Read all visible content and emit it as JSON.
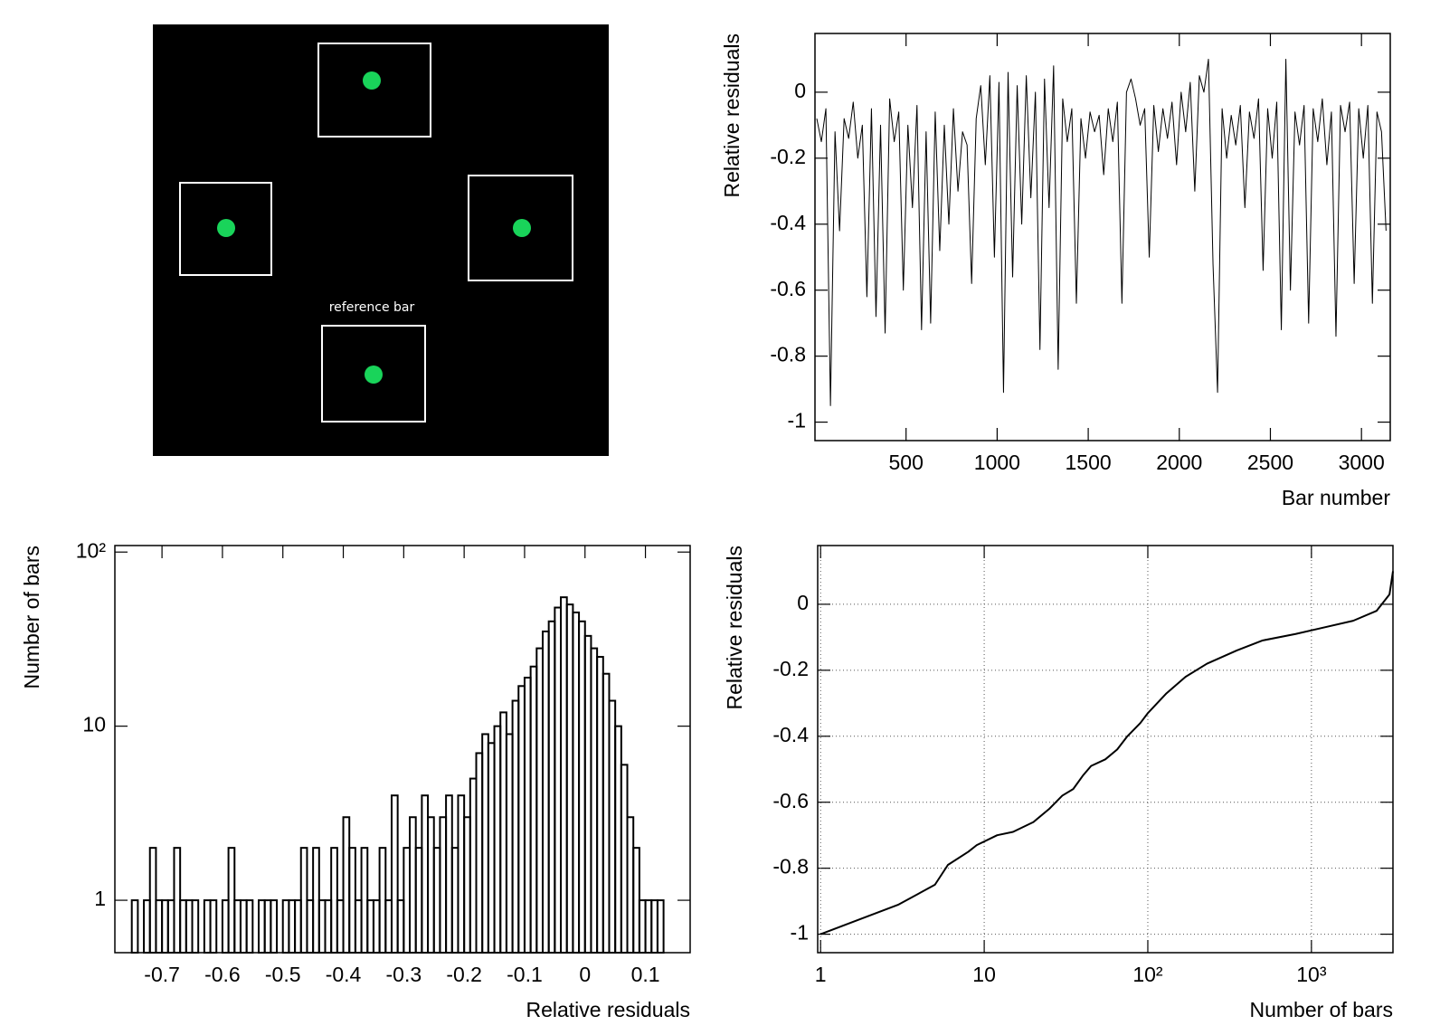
{
  "diagram": {
    "label": "reference bar"
  },
  "chart_data": [
    {
      "type": "line",
      "xlabel": "Bar number",
      "ylabel": "Relative residuals",
      "color": "#000000",
      "xlim": [
        0,
        3158
      ],
      "xticks": [
        500,
        1000,
        1500,
        2000,
        2500,
        3000
      ],
      "ylim": [
        -1.056,
        0.178
      ],
      "yticks": [
        -1,
        -0.8,
        -0.6,
        -0.4,
        -0.2,
        0
      ],
      "grid": false,
      "x": [
        10,
        35,
        60,
        85,
        110,
        135,
        160,
        185,
        210,
        235,
        260,
        285,
        310,
        335,
        360,
        385,
        410,
        435,
        460,
        485,
        510,
        535,
        560,
        585,
        610,
        635,
        660,
        685,
        710,
        735,
        760,
        785,
        810,
        835,
        860,
        885,
        910,
        935,
        960,
        985,
        1010,
        1035,
        1060,
        1085,
        1110,
        1135,
        1160,
        1185,
        1210,
        1235,
        1260,
        1285,
        1310,
        1335,
        1360,
        1385,
        1410,
        1435,
        1460,
        1485,
        1510,
        1535,
        1560,
        1585,
        1610,
        1635,
        1660,
        1685,
        1710,
        1735,
        1760,
        1785,
        1810,
        1835,
        1860,
        1885,
        1910,
        1935,
        1960,
        1985,
        2010,
        2035,
        2060,
        2085,
        2110,
        2135,
        2160,
        2185,
        2210,
        2235,
        2260,
        2285,
        2310,
        2335,
        2360,
        2385,
        2410,
        2435,
        2460,
        2485,
        2510,
        2535,
        2560,
        2585,
        2610,
        2635,
        2660,
        2685,
        2710,
        2735,
        2760,
        2785,
        2810,
        2835,
        2860,
        2885,
        2910,
        2935,
        2960,
        2985,
        3010,
        3035,
        3060,
        3085,
        3110,
        3135
      ],
      "values": [
        -0.08,
        -0.15,
        -0.05,
        -0.95,
        -0.12,
        -0.42,
        -0.08,
        -0.14,
        -0.03,
        -0.2,
        -0.1,
        -0.62,
        -0.05,
        -0.68,
        -0.1,
        -0.73,
        -0.02,
        -0.15,
        -0.06,
        -0.6,
        -0.1,
        -0.35,
        -0.04,
        -0.72,
        -0.12,
        -0.7,
        -0.06,
        -0.48,
        -0.1,
        -0.4,
        -0.05,
        -0.3,
        -0.12,
        -0.16,
        -0.58,
        -0.08,
        0.02,
        -0.22,
        0.05,
        -0.5,
        0.03,
        -0.91,
        0.06,
        -0.56,
        0.02,
        -0.4,
        0.05,
        -0.32,
        0,
        -0.78,
        0.04,
        -0.35,
        0.08,
        -0.84,
        -0.02,
        -0.15,
        -0.05,
        -0.64,
        -0.08,
        -0.2,
        -0.06,
        -0.12,
        -0.07,
        -0.25,
        -0.05,
        -0.15,
        -0.03,
        -0.64,
        0,
        0.04,
        -0.02,
        -0.1,
        -0.05,
        -0.5,
        -0.04,
        -0.18,
        -0.05,
        -0.14,
        -0.03,
        -0.22,
        0,
        -0.12,
        0.03,
        -0.3,
        0.05,
        0,
        0.1,
        -0.52,
        -0.91,
        -0.05,
        -0.2,
        -0.07,
        -0.16,
        -0.04,
        -0.35,
        -0.06,
        -0.14,
        -0.02,
        -0.54,
        -0.05,
        -0.2,
        -0.03,
        -0.72,
        0.1,
        -0.6,
        -0.06,
        -0.16,
        -0.04,
        -0.7,
        -0.05,
        -0.15,
        -0.02,
        -0.22,
        -0.06,
        -0.74,
        -0.04,
        -0.12,
        -0.03,
        -0.58,
        -0.05,
        -0.2,
        -0.04,
        -0.64,
        -0.06,
        -0.12,
        -0.42
      ]
    },
    {
      "type": "histogram",
      "xlabel": "Relative residuals",
      "ylabel": "Number of bars",
      "color": "#000000",
      "ylog": true,
      "xlim": [
        -0.778,
        0.174
      ],
      "xticks": [
        -0.7,
        -0.6,
        -0.5,
        -0.4,
        -0.3,
        -0.2,
        -0.1,
        0,
        0.1
      ],
      "ylim": [
        0.5,
        109
      ],
      "yticks": [
        1,
        10,
        {
          "value": 100,
          "label": "10²"
        }
      ],
      "grid": false,
      "bins": [
        -0.76,
        -0.75,
        -0.74,
        -0.73,
        -0.72,
        -0.71,
        -0.7,
        -0.69,
        -0.68,
        -0.67,
        -0.66,
        -0.65,
        -0.64,
        -0.63,
        -0.62,
        -0.61,
        -0.6,
        -0.59,
        -0.58,
        -0.57,
        -0.56,
        -0.55,
        -0.54,
        -0.53,
        -0.52,
        -0.51,
        -0.5,
        -0.49,
        -0.48,
        -0.47,
        -0.46,
        -0.45,
        -0.44,
        -0.43,
        -0.42,
        -0.41,
        -0.4,
        -0.39,
        -0.38,
        -0.37,
        -0.36,
        -0.35,
        -0.34,
        -0.33,
        -0.32,
        -0.31,
        -0.3,
        -0.29,
        -0.28,
        -0.27,
        -0.26,
        -0.25,
        -0.24,
        -0.23,
        -0.22,
        -0.21,
        -0.2,
        -0.19,
        -0.18,
        -0.17,
        -0.16,
        -0.15,
        -0.14,
        -0.13,
        -0.12,
        -0.11,
        -0.1,
        -0.09,
        -0.08,
        -0.07,
        -0.06,
        -0.05,
        -0.04,
        -0.03,
        -0.02,
        -0.01,
        0,
        0.01,
        0.02,
        0.03,
        0.04,
        0.05,
        0.06,
        0.07,
        0.08,
        0.09,
        0.1,
        0.11,
        0.12,
        0.13
      ],
      "values": [
        0,
        1,
        0,
        1,
        2,
        1,
        1,
        1,
        2,
        1,
        1,
        1,
        0,
        1,
        1,
        0,
        1,
        2,
        1,
        1,
        1,
        0,
        1,
        1,
        1,
        0,
        1,
        1,
        1,
        2,
        1,
        2,
        1,
        1,
        2,
        1,
        3,
        2,
        1,
        2,
        1,
        1,
        2,
        1,
        4,
        1,
        2,
        3,
        2,
        4,
        3,
        2,
        3,
        4,
        2,
        4,
        3,
        5,
        7,
        9,
        8,
        10,
        12,
        9,
        14,
        17,
        19,
        22,
        28,
        35,
        40,
        48,
        55,
        50,
        45,
        40,
        33,
        28,
        25,
        20,
        14,
        10,
        6,
        3,
        2,
        1,
        1,
        1,
        1
      ]
    },
    {
      "type": "line",
      "xlabel": "Number of bars",
      "ylabel": "Relative residuals",
      "color": "#000000",
      "xlog": true,
      "xlim": [
        0.96,
        3150
      ],
      "xticks": [
        1,
        10,
        {
          "value": 100,
          "label": "10²"
        },
        {
          "value": 1000,
          "label": "10³"
        }
      ],
      "ylim": [
        -1.056,
        0.178
      ],
      "yticks": [
        -1,
        -0.8,
        -0.6,
        -0.4,
        -0.2,
        0
      ],
      "grid": true,
      "x": [
        1,
        3,
        5,
        6,
        8,
        9,
        12,
        15,
        20,
        25,
        30,
        35,
        40,
        45,
        55,
        65,
        75,
        90,
        100,
        130,
        170,
        230,
        350,
        500,
        800,
        1200,
        1800,
        2500,
        3000,
        3150
      ],
      "values": [
        -1,
        -0.91,
        -0.85,
        -0.79,
        -0.75,
        -0.73,
        -0.7,
        -0.69,
        -0.66,
        -0.62,
        -0.58,
        -0.56,
        -0.52,
        -0.49,
        -0.47,
        -0.44,
        -0.4,
        -0.36,
        -0.33,
        -0.27,
        -0.22,
        -0.18,
        -0.14,
        -0.11,
        -0.09,
        -0.07,
        -0.05,
        -0.02,
        0.03,
        0.1
      ]
    }
  ]
}
